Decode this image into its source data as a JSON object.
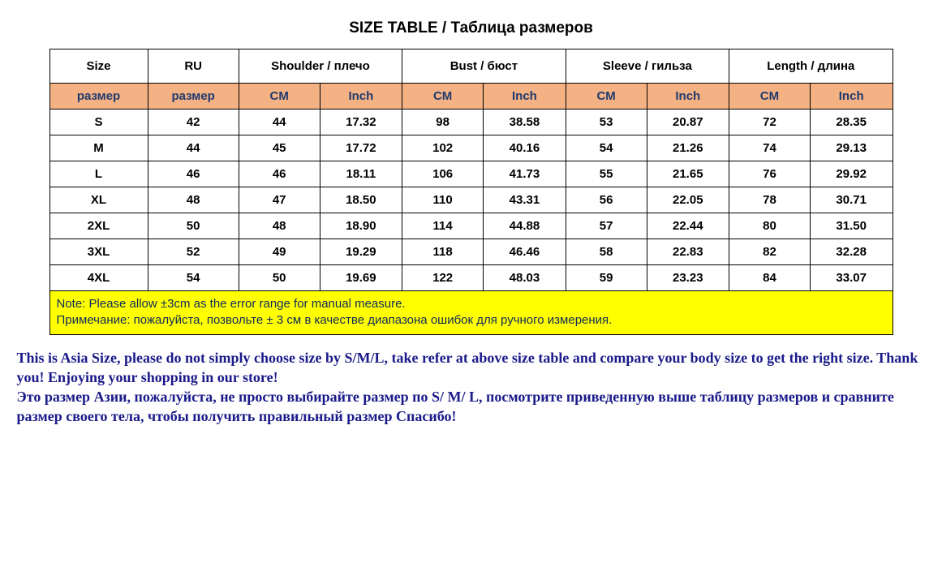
{
  "title": "SIZE TABLE  /  Таблица размеров",
  "headers": {
    "size": "Size",
    "ru": "RU",
    "shoulder": "Shoulder / плечо",
    "bust": "Bust / бюст",
    "sleeve": "Sleeve / гильза",
    "length": "Length / длина"
  },
  "units": {
    "size": "размер",
    "ru": "размер",
    "cm": "CM",
    "inch": "Inch"
  },
  "rows": [
    {
      "size": "S",
      "ru": "42",
      "shoulder_cm": "44",
      "shoulder_in": "17.32",
      "bust_cm": "98",
      "bust_in": "38.58",
      "sleeve_cm": "53",
      "sleeve_in": "20.87",
      "length_cm": "72",
      "length_in": "28.35"
    },
    {
      "size": "M",
      "ru": "44",
      "shoulder_cm": "45",
      "shoulder_in": "17.72",
      "bust_cm": "102",
      "bust_in": "40.16",
      "sleeve_cm": "54",
      "sleeve_in": "21.26",
      "length_cm": "74",
      "length_in": "29.13"
    },
    {
      "size": "L",
      "ru": "46",
      "shoulder_cm": "46",
      "shoulder_in": "18.11",
      "bust_cm": "106",
      "bust_in": "41.73",
      "sleeve_cm": "55",
      "sleeve_in": "21.65",
      "length_cm": "76",
      "length_in": "29.92"
    },
    {
      "size": "XL",
      "ru": "48",
      "shoulder_cm": "47",
      "shoulder_in": "18.50",
      "bust_cm": "110",
      "bust_in": "43.31",
      "sleeve_cm": "56",
      "sleeve_in": "22.05",
      "length_cm": "78",
      "length_in": "30.71"
    },
    {
      "size": "2XL",
      "ru": "50",
      "shoulder_cm": "48",
      "shoulder_in": "18.90",
      "bust_cm": "114",
      "bust_in": "44.88",
      "sleeve_cm": "57",
      "sleeve_in": "22.44",
      "length_cm": "80",
      "length_in": "31.50"
    },
    {
      "size": "3XL",
      "ru": "52",
      "shoulder_cm": "49",
      "shoulder_in": "19.29",
      "bust_cm": "118",
      "bust_in": "46.46",
      "sleeve_cm": "58",
      "sleeve_in": "22.83",
      "length_cm": "82",
      "length_in": "32.28"
    },
    {
      "size": "4XL",
      "ru": "54",
      "shoulder_cm": "50",
      "shoulder_in": "19.69",
      "bust_cm": "122",
      "bust_in": "48.03",
      "sleeve_cm": "59",
      "sleeve_in": "23.23",
      "length_cm": "84",
      "length_in": "33.07"
    }
  ],
  "note": {
    "line1": "Note: Please allow ±3cm as the error range for manual measure.",
    "line2": "Примечание: пожалуйста, позвольте ± 3 см в качестве диапазона ошибок для ручного измерения."
  },
  "footer": {
    "line1": "This is Asia Size, please do not simply choose size by S/M/L, take refer at above size table and compare your body size to get the right size. Thank you!  Enjoying your shopping in our store!",
    "line2": "Это размер Азии, пожалуйста, не просто выбирайте размер по S/ M/ L, посмотрите приведенную выше таблицу размеров и сравните размер своего тела, чтобы получить правильный размер Спасибо!"
  },
  "colors": {
    "unit_bg": "#f4b183",
    "note_bg": "#ffff00",
    "footer_text": "#1a1a8a",
    "unit_text": "#1f3a6e"
  }
}
